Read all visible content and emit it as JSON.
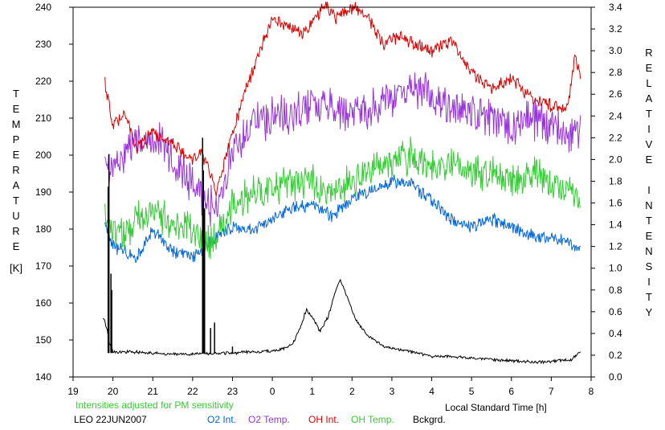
{
  "chart_data": {
    "type": "line",
    "xlabel": "Local Standard Time [h]",
    "x_ticks": [
      "19",
      "20",
      "21",
      "22",
      "23",
      "0",
      "1",
      "2",
      "3",
      "4",
      "5",
      "6",
      "7",
      "8"
    ],
    "left_axis": {
      "label_letters": [
        "T",
        "E",
        "M",
        "P",
        "E",
        "R",
        "A",
        "T",
        "U",
        "R",
        "E"
      ],
      "unit": "[K]",
      "ylim": [
        140,
        240
      ],
      "ticks": [
        "140",
        "150",
        "160",
        "170",
        "180",
        "190",
        "200",
        "210",
        "220",
        "230",
        "240"
      ]
    },
    "right_axis": {
      "label_word1": [
        "R",
        "E",
        "L",
        "A",
        "T",
        "I",
        "V",
        "E"
      ],
      "label_word2": [
        "I",
        "N",
        "T",
        "E",
        "N",
        "S",
        "I",
        "T",
        "Y"
      ],
      "ylim": [
        0.0,
        3.4
      ],
      "ticks": [
        "0.0",
        "0.2",
        "0.4",
        "0.6",
        "0.8",
        "1.0",
        "1.2",
        "1.4",
        "1.6",
        "1.8",
        "2.0",
        "2.2",
        "2.4",
        "2.6",
        "2.8",
        "3.0",
        "3.2",
        "3.4"
      ]
    },
    "note": "Intensities adjusted for PM sensitivity",
    "site_date": "LEO 22JUN2007",
    "series": [
      {
        "name": "O2 Int.",
        "color": "#0066dd",
        "axis": "right",
        "noise": 0.05,
        "x": [
          19.8,
          20.0,
          20.3,
          20.6,
          21.0,
          21.5,
          22.0,
          22.3,
          22.6,
          23.0,
          23.5,
          24.0,
          24.5,
          25.0,
          25.5,
          26.0,
          26.5,
          27.0,
          27.5,
          28.0,
          28.5,
          29.0,
          29.5,
          30.0,
          30.5,
          31.0,
          31.5,
          31.75
        ],
        "y": [
          1.4,
          1.2,
          1.15,
          1.1,
          1.35,
          1.15,
          1.1,
          1.2,
          1.3,
          1.38,
          1.35,
          1.45,
          1.55,
          1.58,
          1.48,
          1.65,
          1.72,
          1.8,
          1.78,
          1.62,
          1.45,
          1.38,
          1.45,
          1.38,
          1.3,
          1.28,
          1.22,
          1.18
        ]
      },
      {
        "name": "O2 Temp.",
        "color": "#9933dd",
        "axis": "left",
        "noise": 4.5,
        "x": [
          19.8,
          20.0,
          20.3,
          20.6,
          21.0,
          21.5,
          22.0,
          22.3,
          22.6,
          23.0,
          23.5,
          24.0,
          24.5,
          25.0,
          25.5,
          26.0,
          26.5,
          27.0,
          27.5,
          28.0,
          28.5,
          29.0,
          29.5,
          30.0,
          30.5,
          31.0,
          31.5,
          31.75
        ],
        "y": [
          196,
          197,
          201,
          203,
          205,
          200,
          192,
          188,
          185,
          200,
          208,
          210,
          211,
          214,
          212,
          210,
          213,
          215,
          218,
          216,
          213,
          212,
          210,
          208,
          210,
          207,
          205,
          207
        ]
      },
      {
        "name": "OH Int.",
        "color": "#dd0000",
        "axis": "right",
        "noise": 0.05,
        "x": [
          19.8,
          20.0,
          20.3,
          20.6,
          21.0,
          21.5,
          22.0,
          22.2,
          22.4,
          22.6,
          23.0,
          23.3,
          23.6,
          24.0,
          24.5,
          24.8,
          25.0,
          25.3,
          25.6,
          26.0,
          26.4,
          26.8,
          27.2,
          27.6,
          28.0,
          28.5,
          29.0,
          29.5,
          30.0,
          30.5,
          31.0,
          31.4,
          31.6,
          31.75
        ],
        "y": [
          2.7,
          2.3,
          2.45,
          2.1,
          2.25,
          2.15,
          2.0,
          2.05,
          1.95,
          1.7,
          2.25,
          2.6,
          2.9,
          3.3,
          3.2,
          3.15,
          3.25,
          3.42,
          3.3,
          3.4,
          3.3,
          3.05,
          3.15,
          3.05,
          3.0,
          3.1,
          2.8,
          2.65,
          2.75,
          2.55,
          2.5,
          2.45,
          2.95,
          2.75
        ]
      },
      {
        "name": "OH Temp.",
        "color": "#33cc33",
        "axis": "left",
        "noise": 4,
        "x": [
          19.8,
          20.0,
          20.3,
          20.6,
          21.0,
          21.5,
          22.0,
          22.3,
          22.6,
          23.0,
          23.5,
          24.0,
          24.5,
          25.0,
          25.5,
          26.0,
          26.5,
          27.0,
          27.5,
          28.0,
          28.5,
          29.0,
          29.5,
          30.0,
          30.5,
          31.0,
          31.5,
          31.75
        ],
        "y": [
          184,
          180,
          178,
          183,
          184,
          182,
          180,
          176,
          178,
          186,
          190,
          191,
          192,
          193,
          190,
          193,
          196,
          198,
          200,
          197,
          198,
          196,
          195,
          193,
          195,
          192,
          191,
          186
        ]
      },
      {
        "name": "Bckgrd.",
        "color": "#000000",
        "axis": "right",
        "noise": 0.012,
        "x": [
          19.75,
          19.85,
          19.9,
          20.0,
          20.5,
          21.0,
          21.5,
          22.0,
          22.5,
          23.0,
          23.5,
          24.0,
          24.2,
          24.5,
          24.7,
          24.85,
          25.0,
          25.2,
          25.4,
          25.55,
          25.7,
          25.9,
          26.1,
          26.4,
          26.8,
          27.2,
          27.6,
          28.0,
          28.5,
          29.0,
          29.5,
          30.0,
          30.5,
          31.0,
          31.5,
          31.75
        ],
        "y": [
          0.55,
          0.45,
          0.32,
          0.23,
          0.23,
          0.22,
          0.21,
          0.21,
          0.22,
          0.22,
          0.23,
          0.24,
          0.25,
          0.3,
          0.45,
          0.62,
          0.55,
          0.42,
          0.55,
          0.75,
          0.9,
          0.72,
          0.52,
          0.38,
          0.28,
          0.25,
          0.22,
          0.19,
          0.19,
          0.17,
          0.16,
          0.15,
          0.14,
          0.14,
          0.16,
          0.24
        ]
      }
    ],
    "spikes": {
      "color": "#000000",
      "x": [
        19.88,
        19.9,
        19.95,
        19.97,
        22.25,
        22.27,
        22.3,
        22.45,
        22.55,
        23.0
      ],
      "y": [
        1.75,
        2.05,
        0.95,
        0.8,
        2.2,
        1.9,
        1.55,
        0.45,
        0.5,
        0.28
      ]
    }
  }
}
